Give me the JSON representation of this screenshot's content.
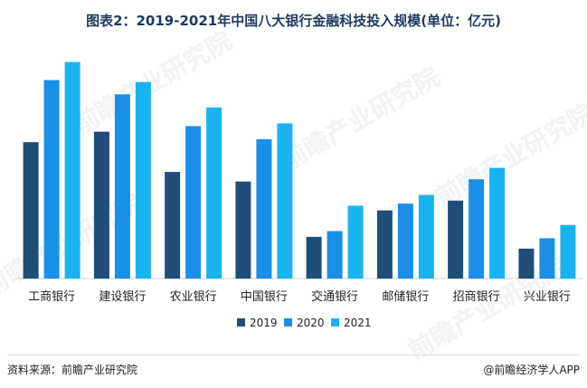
{
  "title": "图表2：2019-2021年中国八大银行金融科技投入规模(单位：亿元)",
  "footer": {
    "source": "资料来源：前瞻产业研究院",
    "brand": "@前瞻经济学人APP"
  },
  "watermark": "前瞻产业研究院",
  "colors": {
    "2019": "#1f4e79",
    "2020": "#1a8fe8",
    "2021": "#19b4ef"
  },
  "chart_data": {
    "type": "bar",
    "title": "图表2：2019-2021年中国八大银行金融科技投入规模(单位：亿元)",
    "categories": [
      "工商银行",
      "建设银行",
      "农业银行",
      "中国银行",
      "交通银行",
      "邮储银行",
      "招商银行",
      "兴业银行"
    ],
    "series": [
      {
        "name": "2019",
        "values": [
          163.7,
          176.3,
          127.9,
          116.5,
          50.0,
          81.8,
          93.6,
          35.9
        ]
      },
      {
        "name": "2020",
        "values": [
          238.2,
          221.1,
          183.0,
          167.1,
          57.0,
          90.0,
          119.2,
          48.4
        ]
      },
      {
        "name": "2021",
        "values": [
          259.9,
          235.8,
          205.3,
          186.2,
          87.5,
          100.4,
          132.8,
          64.4
        ]
      }
    ],
    "ylim": [
      0,
      280
    ],
    "grid": false,
    "legend": "bottom"
  }
}
